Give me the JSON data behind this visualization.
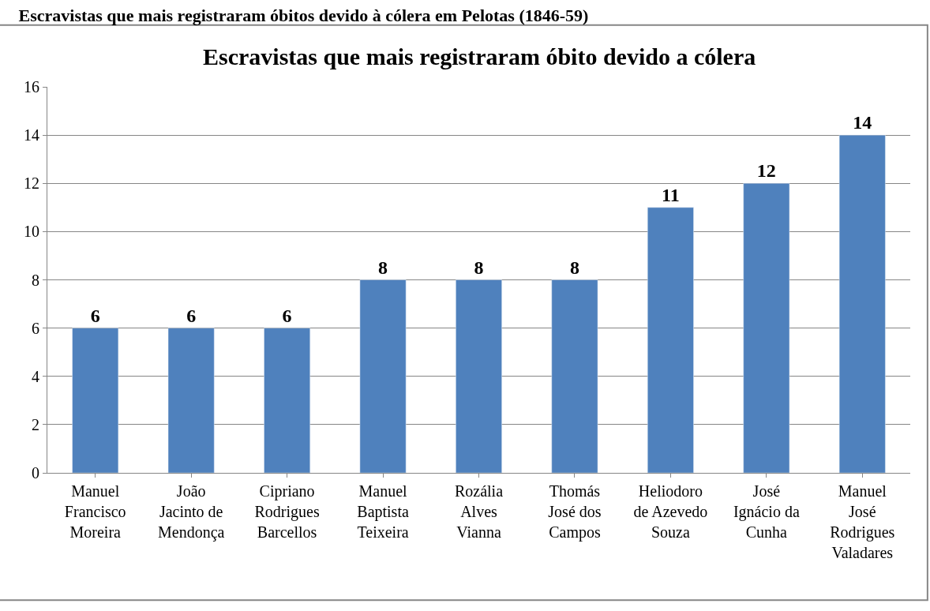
{
  "chart_data": {
    "type": "bar",
    "title": "Escravistas que mais registraram óbitos devido à cólera em Pelotas (1846-59)",
    "subtitle": "Escravistas que mais registraram óbito devido a cólera",
    "categories": [
      "Manuel Francisco Moreira",
      "João Jacinto de Mendonça",
      "Cipriano Rodrigues Barcellos",
      "Manuel Baptista Teixeira",
      "Rozália Alves Vianna",
      "Thomás José dos Campos",
      "Heliodoro de Azevedo Souza",
      "José Ignácio da Cunha",
      "Manuel José Rodrigues Valadares"
    ],
    "values": [
      6,
      6,
      6,
      8,
      8,
      8,
      11,
      12,
      14
    ],
    "color": "#4f81bd",
    "data_labels": true,
    "ylim": [
      0,
      16
    ],
    "yticks": [
      0,
      2,
      4,
      6,
      8,
      10,
      12,
      14,
      16
    ],
    "grid": "y"
  }
}
